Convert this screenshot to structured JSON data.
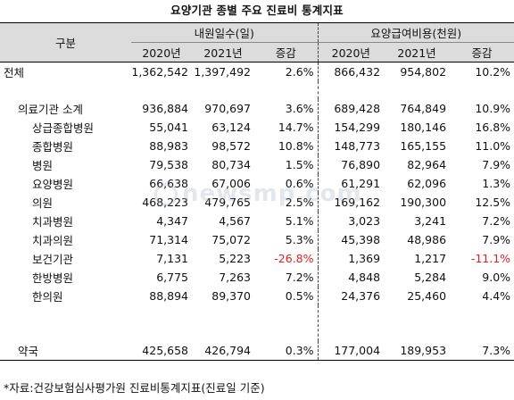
{
  "title": "요양기관 종별 주요 진료비 통계지표",
  "header": {
    "category": "구분",
    "group1": "내원일수(일)",
    "group2": "요양급여비용(천원)",
    "year1": "2020년",
    "year2": "2021년",
    "change": "증감"
  },
  "rows": {
    "total": {
      "label": "전체",
      "v1": "1,362,542",
      "v2": "1,397,492",
      "c1": "2.6%",
      "v3": "866,432",
      "v4": "954,802",
      "c2": "10.2%"
    },
    "subtotal": {
      "label": "의료기관 소계",
      "v1": "936,884",
      "v2": "970,697",
      "c1": "3.6%",
      "v3": "689,428",
      "v4": "764,849",
      "c2": "10.9%"
    },
    "tertiary": {
      "label": "상급종합병원",
      "v1": "55,041",
      "v2": "63,124",
      "c1": "14.7%",
      "v3": "154,299",
      "v4": "180,146",
      "c2": "16.8%"
    },
    "general": {
      "label": "종합병원",
      "v1": "88,983",
      "v2": "98,572",
      "c1": "10.8%",
      "v3": "148,773",
      "v4": "165,155",
      "c2": "11.0%"
    },
    "hospital": {
      "label": "병원",
      "v1": "79,538",
      "v2": "80,734",
      "c1": "1.5%",
      "v3": "76,890",
      "v4": "82,964",
      "c2": "7.9%"
    },
    "longterm": {
      "label": "요양병원",
      "v1": "66,638",
      "v2": "67,006",
      "c1": "0.6%",
      "v3": "61,291",
      "v4": "62,096",
      "c2": "1.3%"
    },
    "clinic": {
      "label": "의원",
      "v1": "468,223",
      "v2": "479,765",
      "c1": "2.5%",
      "v3": "169,162",
      "v4": "190,300",
      "c2": "12.5%"
    },
    "dental_hosp": {
      "label": "치과병원",
      "v1": "4,347",
      "v2": "4,567",
      "c1": "5.1%",
      "v3": "3,023",
      "v4": "3,241",
      "c2": "7.2%"
    },
    "dental_clin": {
      "label": "치과의원",
      "v1": "71,314",
      "v2": "75,072",
      "c1": "5.3%",
      "v3": "45,398",
      "v4": "48,986",
      "c2": "7.9%"
    },
    "public": {
      "label": "보건기관",
      "v1": "7,131",
      "v2": "5,223",
      "c1": "-26.8%",
      "v3": "1,369",
      "v4": "1,217",
      "c2": "-11.1%"
    },
    "oriental_hosp": {
      "label": "한방병원",
      "v1": "6,775",
      "v2": "7,263",
      "c1": "7.2%",
      "v3": "4,848",
      "v4": "5,284",
      "c2": "9.0%"
    },
    "oriental_clin": {
      "label": "한의원",
      "v1": "88,894",
      "v2": "89,370",
      "c1": "0.5%",
      "v3": "24,376",
      "v4": "25,460",
      "c2": "4.4%"
    },
    "pharmacy": {
      "label": "약국",
      "v1": "425,658",
      "v2": "426,794",
      "c1": "0.3%",
      "v3": "177,004",
      "v4": "189,953",
      "c2": "7.3%"
    }
  },
  "negative_color": "#e02020",
  "footnote": "*자료:건강보험심사평가원 진료비통계지표(진료일 기준)",
  "watermark": "newsmp.com"
}
